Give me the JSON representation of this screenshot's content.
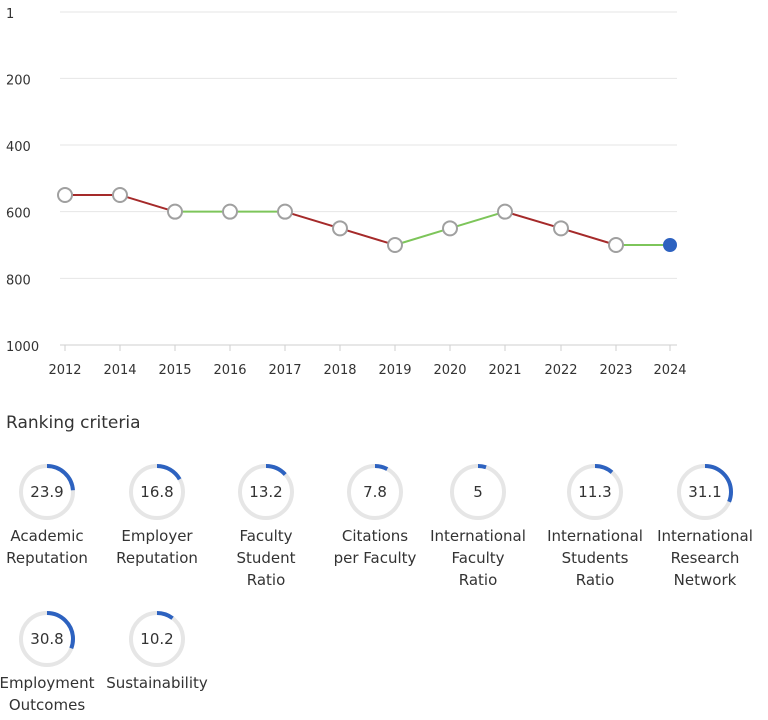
{
  "chart_data": {
    "type": "line",
    "x": [
      "2012",
      "2014",
      "2015",
      "2016",
      "2017",
      "2018",
      "2019",
      "2020",
      "2021",
      "2022",
      "2023",
      "2024"
    ],
    "series": [
      {
        "values": [
          550,
          550,
          600,
          600,
          600,
          650,
          700,
          650,
          600,
          650,
          700,
          700
        ]
      }
    ],
    "y_ticks": [
      "1",
      "200",
      "400",
      "600",
      "800",
      "1000"
    ],
    "ylim": [
      1,
      1000
    ],
    "y_inverted": true,
    "grid": true,
    "colors": {
      "down": "#a52a2a",
      "up": "#7dc55a",
      "flat": "#7dc55a",
      "marker_fill": "#ffffff",
      "marker_stroke": "#a0a0a0",
      "latest_marker": "#2d62c0"
    }
  },
  "criteria_title": "Ranking criteria",
  "criteria": [
    {
      "value": "23.9",
      "label": [
        "Academic",
        "Reputation"
      ]
    },
    {
      "value": "16.8",
      "label": [
        "Employer",
        "Reputation"
      ]
    },
    {
      "value": "13.2",
      "label": [
        "Faculty",
        "Student",
        "Ratio"
      ]
    },
    {
      "value": "7.8",
      "label": [
        "Citations",
        "per Faculty"
      ]
    },
    {
      "value": "5",
      "label": [
        "International",
        "Faculty",
        "Ratio"
      ]
    },
    {
      "value": "11.3",
      "label": [
        "International",
        "Students",
        "Ratio"
      ]
    },
    {
      "value": "31.1",
      "label": [
        "International",
        "Research",
        "Network"
      ]
    },
    {
      "value": "30.8",
      "label": [
        "Employment",
        "Outcomes"
      ]
    },
    {
      "value": "10.2",
      "label": [
        "Sustainability"
      ]
    }
  ],
  "gauge_colors": {
    "track": "#e6e6e6",
    "fill": "#2d62c0"
  }
}
